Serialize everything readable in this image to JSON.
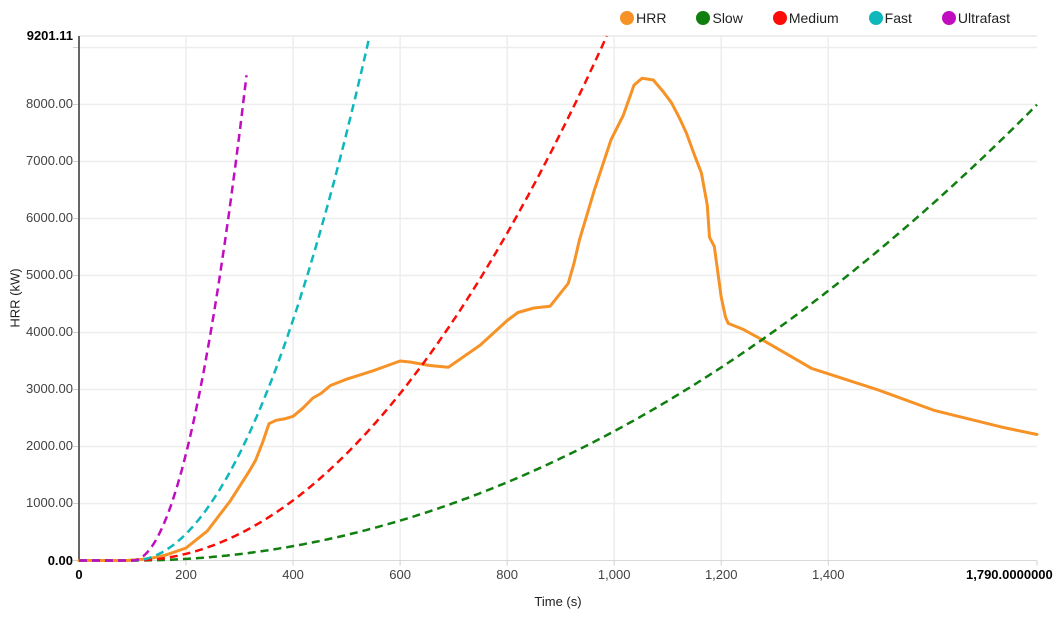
{
  "legend": {
    "items": [
      {
        "label": "HRR",
        "color": "#F69226"
      },
      {
        "label": "Slow",
        "color": "#107F10"
      },
      {
        "label": "Medium",
        "color": "#FA0D06"
      },
      {
        "label": "Fast",
        "color": "#0DB7BC"
      },
      {
        "label": "Ultrafast",
        "color": "#C00DC0"
      }
    ]
  },
  "axes": {
    "y_title": "HRR (kW)",
    "x_title": "Time (s)",
    "y_ticks": [
      {
        "value": 0,
        "label": "0.00",
        "bold": true
      },
      {
        "value": 1000,
        "label": "1000.00",
        "bold": false
      },
      {
        "value": 2000,
        "label": "2000.00",
        "bold": false
      },
      {
        "value": 3000,
        "label": "3000.00",
        "bold": false
      },
      {
        "value": 4000,
        "label": "4000.00",
        "bold": false
      },
      {
        "value": 5000,
        "label": "5000.00",
        "bold": false
      },
      {
        "value": 6000,
        "label": "6000.00",
        "bold": false
      },
      {
        "value": 7000,
        "label": "7000.00",
        "bold": false
      },
      {
        "value": 8000,
        "label": "8000.00",
        "bold": false
      },
      {
        "value": 9201.11,
        "label": "9201.11",
        "bold": true
      }
    ],
    "x_ticks": [
      {
        "value": 0,
        "label": "0",
        "bold": true
      },
      {
        "value": 200,
        "label": "200",
        "bold": false
      },
      {
        "value": 400,
        "label": "400",
        "bold": false
      },
      {
        "value": 600,
        "label": "600",
        "bold": false
      },
      {
        "value": 800,
        "label": "800",
        "bold": false
      },
      {
        "value": 1000,
        "label": "1,000",
        "bold": false
      },
      {
        "value": 1200,
        "label": "1,200",
        "bold": false
      },
      {
        "value": 1400,
        "label": "1,400",
        "bold": false
      },
      {
        "value": 1790,
        "label": "1,790.0000000",
        "bold": true,
        "edge": true
      }
    ]
  },
  "chart_data": {
    "type": "line",
    "title": "",
    "xlabel": "Time (s)",
    "ylabel": "HRR (kW)",
    "xlim": [
      0,
      1790
    ],
    "ylim": [
      0,
      9201.11
    ],
    "grid": true,
    "legend_position": "top-right",
    "y_grid_step": 1000,
    "series": [
      {
        "name": "HRR",
        "color": "#F69226",
        "style": "solid",
        "points": [
          [
            0,
            0
          ],
          [
            90,
            0
          ],
          [
            130,
            30
          ],
          [
            160,
            90
          ],
          [
            200,
            220
          ],
          [
            240,
            520
          ],
          [
            283,
            1050
          ],
          [
            317,
            1550
          ],
          [
            330,
            1760
          ],
          [
            343,
            2070
          ],
          [
            355,
            2400
          ],
          [
            368,
            2460
          ],
          [
            386,
            2490
          ],
          [
            400,
            2530
          ],
          [
            418,
            2670
          ],
          [
            437,
            2850
          ],
          [
            452,
            2930
          ],
          [
            470,
            3070
          ],
          [
            500,
            3180
          ],
          [
            550,
            3330
          ],
          [
            600,
            3500
          ],
          [
            620,
            3480
          ],
          [
            655,
            3420
          ],
          [
            690,
            3390
          ],
          [
            750,
            3780
          ],
          [
            800,
            4210
          ],
          [
            820,
            4350
          ],
          [
            850,
            4430
          ],
          [
            880,
            4460
          ],
          [
            914,
            4860
          ],
          [
            925,
            5220
          ],
          [
            935,
            5620
          ],
          [
            963,
            6500
          ],
          [
            994,
            7380
          ],
          [
            1017,
            7810
          ],
          [
            1037,
            8340
          ],
          [
            1052,
            8460
          ],
          [
            1073,
            8430
          ],
          [
            1092,
            8220
          ],
          [
            1107,
            8030
          ],
          [
            1122,
            7760
          ],
          [
            1135,
            7500
          ],
          [
            1150,
            7110
          ],
          [
            1163,
            6800
          ],
          [
            1174,
            6230
          ],
          [
            1178,
            5670
          ],
          [
            1187,
            5510
          ],
          [
            1200,
            4620
          ],
          [
            1208,
            4270
          ],
          [
            1213,
            4160
          ],
          [
            1240,
            4060
          ],
          [
            1275,
            3880
          ],
          [
            1369,
            3370
          ],
          [
            1494,
            2990
          ],
          [
            1599,
            2630
          ],
          [
            1724,
            2340
          ],
          [
            1790,
            2210
          ]
        ]
      },
      {
        "name": "Slow",
        "color": "#107F10",
        "style": "dashed",
        "t_squared": {
          "alpha": 0.0028,
          "t0": 100,
          "t_end": 1790
        }
      },
      {
        "name": "Medium",
        "color": "#FA0D06",
        "style": "dashed",
        "t_squared": {
          "alpha": 0.01172,
          "t0": 100,
          "t_end": 1790
        }
      },
      {
        "name": "Fast",
        "color": "#0DB7BC",
        "style": "dashed",
        "t_squared": {
          "alpha": 0.0469,
          "t0": 100,
          "t_end": 1790
        }
      },
      {
        "name": "Ultrafast",
        "color": "#C00DC0",
        "style": "dashed",
        "t_squared": {
          "alpha": 0.1876,
          "t0": 100,
          "t_end": 313
        }
      }
    ]
  }
}
